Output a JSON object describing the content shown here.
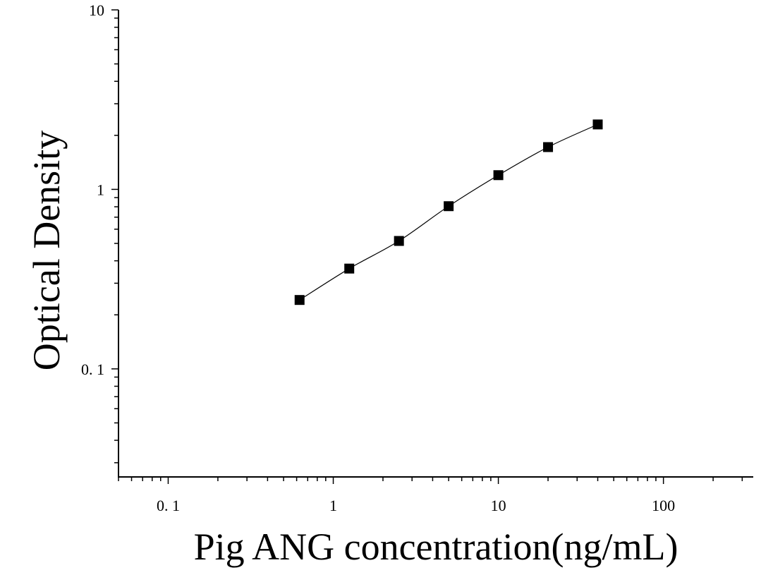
{
  "chart_data": {
    "type": "scatter",
    "xlabel": "Pig ANG concentration(ng/mL)",
    "ylabel": "Optical Density",
    "xscale": "log",
    "yscale": "log",
    "xlim": [
      0.05,
      350
    ],
    "ylim": [
      0.025,
      10
    ],
    "x_ticks": [
      {
        "value": 0.1,
        "label": "0. 1"
      },
      {
        "value": 1,
        "label": "1"
      },
      {
        "value": 10,
        "label": "10"
      },
      {
        "value": 100,
        "label": "100"
      }
    ],
    "y_ticks": [
      {
        "value": 0.1,
        "label": "0. 1"
      },
      {
        "value": 1,
        "label": "1"
      },
      {
        "value": 10,
        "label": "10"
      }
    ],
    "grid": false,
    "marker_color": "#000000",
    "series": [
      {
        "x": [
          0.625,
          1.25,
          2.5,
          5,
          10,
          20,
          40
        ],
        "y": [
          0.242,
          0.362,
          0.516,
          0.806,
          1.2,
          1.72,
          2.3
        ]
      }
    ],
    "fit_curve": true
  }
}
